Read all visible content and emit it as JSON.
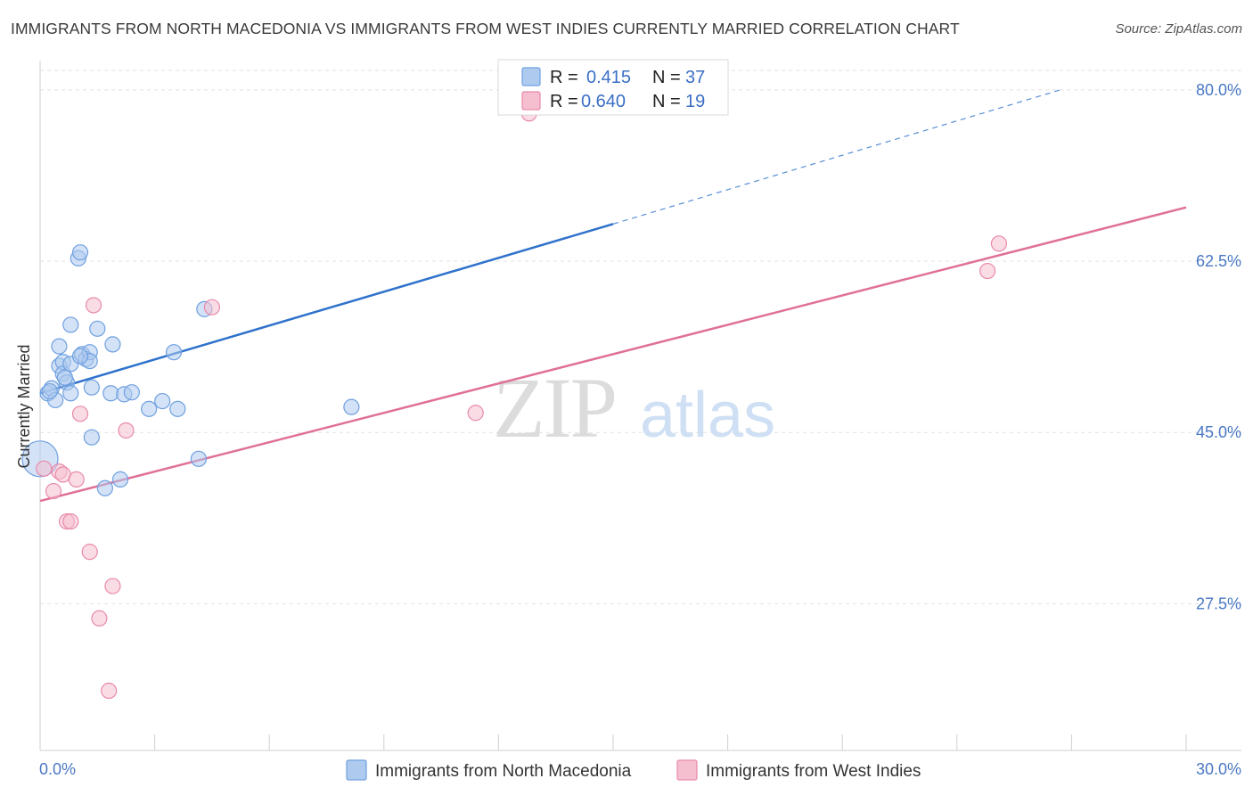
{
  "title": "IMMIGRANTS FROM NORTH MACEDONIA VS IMMIGRANTS FROM WEST INDIES CURRENTLY MARRIED CORRELATION CHART",
  "source": "Source: ZipAtlas.com",
  "watermark": {
    "part1": "ZIP",
    "part2": "atlas"
  },
  "colors": {
    "blue": "#6fa0e0",
    "blue_fill": "#aecbef",
    "blue_line": "#2f72cc",
    "pink": "#e88aaa",
    "pink_fill": "#f5bfd0",
    "pink_line": "#e07098",
    "grid": "#e2e2e2",
    "axis_label": "#4a78c4"
  },
  "legend": {
    "rows": [
      {
        "r_label": "R =",
        "r_value": "0.415",
        "n_label": "N =",
        "n_value": "37"
      },
      {
        "r_label": "R =",
        "r_value": "0.640",
        "n_label": "N =",
        "n_value": "19"
      }
    ]
  },
  "bottom_legend": [
    {
      "label": "Immigrants from North Macedonia"
    },
    {
      "label": "Immigrants from West Indies"
    }
  ],
  "chart_data": {
    "type": "scatter",
    "title": "IMMIGRANTS FROM NORTH MACEDONIA VS IMMIGRANTS FROM WEST INDIES CURRENTLY MARRIED CORRELATION CHART",
    "xlabel": "",
    "ylabel": "Currently Married",
    "xlim": [
      0,
      30
    ],
    "ylim": [
      12.5,
      83
    ],
    "x_tick_labels": [
      "0.0%",
      "30.0%"
    ],
    "y_ticks": [
      27.5,
      45.0,
      62.5,
      80.0
    ],
    "y_tick_labels": [
      "27.5%",
      "45.0%",
      "62.5%",
      "80.0%"
    ],
    "grid": true,
    "legend_position": "top-center",
    "series": [
      {
        "name": "Immigrants from North Macedonia",
        "r": 0.415,
        "n": 37,
        "points": [
          [
            0.0,
            42.3
          ],
          [
            0.2,
            49.0
          ],
          [
            0.3,
            49.5
          ],
          [
            0.4,
            48.3
          ],
          [
            0.5,
            51.8
          ],
          [
            0.6,
            52.2
          ],
          [
            0.5,
            53.8
          ],
          [
            0.6,
            51.0
          ],
          [
            0.7,
            50.1
          ],
          [
            0.8,
            52.0
          ],
          [
            0.8,
            49.0
          ],
          [
            0.8,
            56.0
          ],
          [
            1.0,
            62.8
          ],
          [
            1.05,
            63.4
          ],
          [
            1.1,
            53.0
          ],
          [
            1.2,
            52.5
          ],
          [
            1.3,
            53.2
          ],
          [
            1.3,
            52.3
          ],
          [
            1.35,
            49.6
          ],
          [
            1.35,
            44.5
          ],
          [
            1.5,
            55.6
          ],
          [
            1.7,
            39.3
          ],
          [
            1.85,
            49.0
          ],
          [
            1.9,
            54.0
          ],
          [
            2.1,
            40.2
          ],
          [
            2.2,
            48.9
          ],
          [
            2.4,
            49.1
          ],
          [
            2.85,
            47.4
          ],
          [
            3.2,
            48.2
          ],
          [
            3.5,
            53.2
          ],
          [
            3.6,
            47.4
          ],
          [
            4.15,
            42.3
          ],
          [
            4.3,
            57.6
          ],
          [
            8.15,
            47.6
          ],
          [
            0.25,
            49.2
          ],
          [
            1.05,
            52.8
          ],
          [
            0.65,
            50.6
          ]
        ],
        "trend": {
          "x0": 0.0,
          "y0": 49.0,
          "x1": 15.0,
          "y1": 66.3,
          "x_dashed_end": 26.7,
          "y_dashed_end": 80.0
        }
      },
      {
        "name": "Immigrants from West Indies",
        "r": 0.64,
        "n": 19,
        "points": [
          [
            0.1,
            41.3
          ],
          [
            0.35,
            39.0
          ],
          [
            0.5,
            41.0
          ],
          [
            0.6,
            40.7
          ],
          [
            0.7,
            35.9
          ],
          [
            0.8,
            35.9
          ],
          [
            0.95,
            40.2
          ],
          [
            1.05,
            46.9
          ],
          [
            1.3,
            32.8
          ],
          [
            1.4,
            58.0
          ],
          [
            1.55,
            26.0
          ],
          [
            1.8,
            18.6
          ],
          [
            1.9,
            29.3
          ],
          [
            2.25,
            45.2
          ],
          [
            4.5,
            57.8
          ],
          [
            11.4,
            47.0
          ],
          [
            24.8,
            61.5
          ],
          [
            25.1,
            64.3
          ],
          [
            12.8,
            77.6
          ]
        ],
        "trend": {
          "x0": 0.0,
          "y0": 38.0,
          "x1": 30.0,
          "y1": 68.0
        }
      }
    ]
  }
}
